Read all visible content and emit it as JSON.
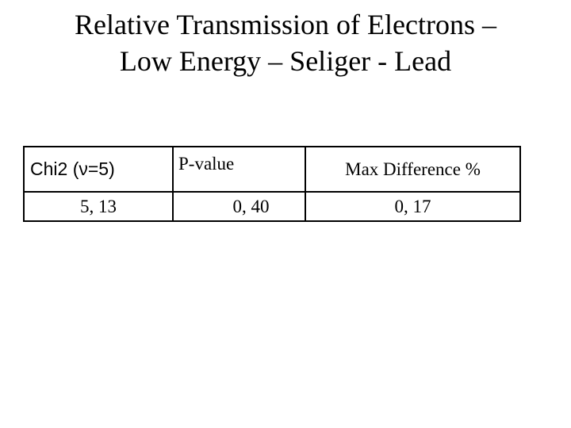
{
  "title": {
    "line1": "Relative Transmission of Electrons –",
    "line2": "Low Energy – Seliger - Lead"
  },
  "table": {
    "headers": [
      "Chi2 (ν=5)",
      "P-value",
      "Max Difference %"
    ],
    "rows": [
      [
        "5, 13",
        "0, 40",
        "0, 17"
      ]
    ]
  }
}
